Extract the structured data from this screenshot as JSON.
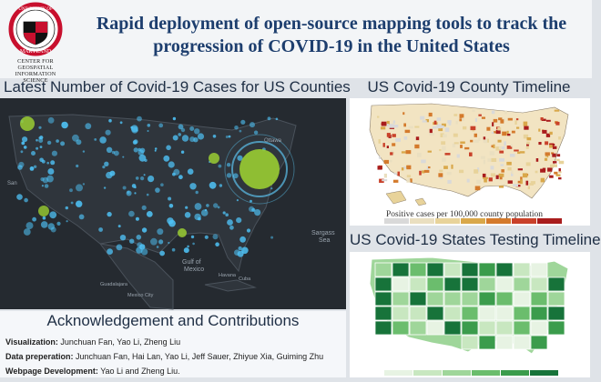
{
  "header": {
    "university_name": "UNIVERSITY OF MARYLAND",
    "center_name": "CENTER FOR GEOSPATIAL INFORMATION SCIENCE",
    "title": "Rapid deployment of open-source mapping tools to track the progression of COVID-19 in the United States"
  },
  "panels": {
    "cases_map": {
      "title": "Latest Number of Covid-19 Cases for US Counties",
      "labels": [
        "Ottawa",
        "San",
        "Gulf of",
        "Mexico",
        "Sargass",
        "Sea",
        "Guadalajara",
        "Mexico City",
        "Cuba",
        "Havana"
      ]
    },
    "county_timeline": {
      "title": "US Covid-19 County Timeline",
      "legend_caption": "Positive cases per 100,000 county population",
      "legend_colors": [
        "#d9d9d9",
        "#eadfc0",
        "#e8d39a",
        "#d9a84a",
        "#d47a2c",
        "#c9412a",
        "#a91d1d"
      ]
    },
    "testing_timeline": {
      "title": "US Covid-19 States Testing Timeline",
      "legend_colors": [
        "#e7f3e3",
        "#c8e7c0",
        "#9fd69a",
        "#6bbd6d",
        "#3b9c4c",
        "#17733a"
      ]
    }
  },
  "acknowledgement": {
    "title": "Acknowledgement and Contributions",
    "lines": [
      {
        "label": "Visualization:",
        "text": " Junchuan Fan, Yao Li, Zheng Liu"
      },
      {
        "label": "Data preperation:",
        "text": " Junchuan Fan, Hai Lan, Yao Li, Jeff Sauer,  Zhiyue Xia, Guiming Zhu"
      },
      {
        "label": "Webpage Development:",
        "text": " Yao Li and Zheng Liu."
      }
    ]
  }
}
